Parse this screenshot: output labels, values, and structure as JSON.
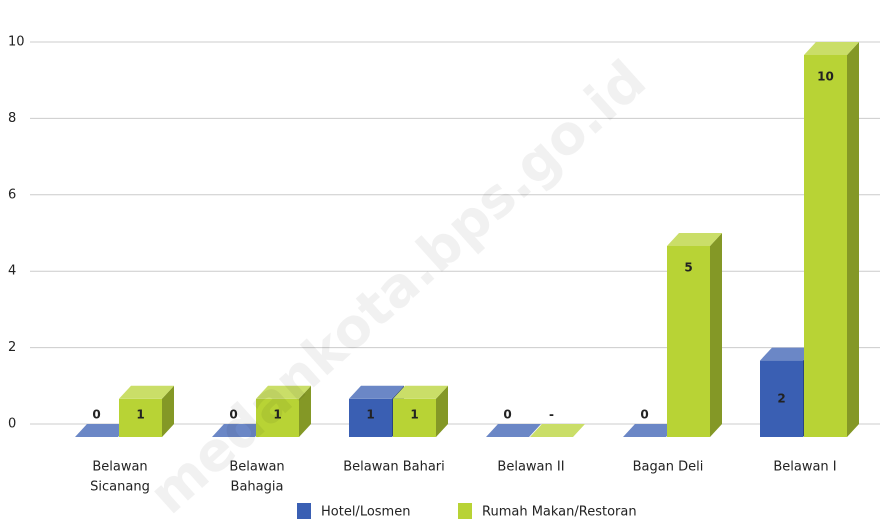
{
  "chart_data": {
    "type": "bar3d",
    "categories": [
      [
        "Belawan",
        "Sicanang"
      ],
      [
        "Belawan",
        "Bahagia"
      ],
      [
        "Belawan Bahari"
      ],
      [
        "Belawan II"
      ],
      [
        "Bagan Deli"
      ],
      [
        "Belawan I"
      ]
    ],
    "series": [
      {
        "name": "Hotel/Losmen",
        "color": "#3a5fb3",
        "values": [
          0,
          0,
          1,
          0,
          0,
          2
        ]
      },
      {
        "name": "Rumah Makan/Restoran",
        "color": "#b8d335",
        "values": [
          1,
          1,
          1,
          null,
          5,
          10
        ],
        "value_labels": [
          "1",
          "1",
          "1",
          "-",
          "5",
          "10"
        ]
      }
    ],
    "ylim": [
      0,
      10
    ],
    "yticks": [
      0,
      2,
      4,
      6,
      8,
      10
    ],
    "grid": true,
    "legend": "bottom",
    "watermark": "medankota.bps.go.id"
  }
}
